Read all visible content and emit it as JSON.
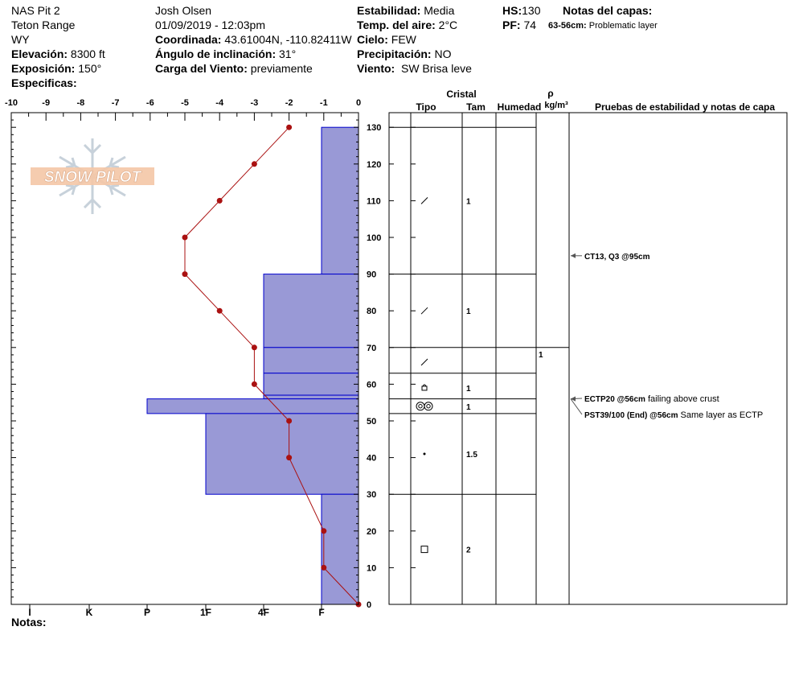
{
  "header": {
    "col1": [
      "NAS Pit 2",
      "Teton Range",
      "WY"
    ],
    "elevation_label": "Elevación:",
    "elevation_value": "8300 ft",
    "aspect_label": "Exposición:",
    "aspect_value": "150°",
    "specifics_label": "Especificas:",
    "observer": "Josh Olsen",
    "datetime": "01/09/2019 - 12:03pm",
    "coord_label": "Coordinada:",
    "coord_value": "43.61004N, -110.82411W",
    "slope_label": "Ángulo de inclinación:",
    "slope_value": "31°",
    "wind_load_label": "Carga del Viento:",
    "wind_load_value": "previamente",
    "stability_label": "Estabilidad:",
    "stability_value": "Media",
    "air_temp_label": "Temp. del aire:",
    "air_temp_value": "2°C",
    "sky_label": "Cielo:",
    "sky_value": "FEW",
    "precip_label": "Precipitación:",
    "precip_value": "NO",
    "wind_label": "Viento:",
    "wind_value": "SW Brisa leve",
    "hs_label": "HS:",
    "hs_value": "130",
    "pf_label": "PF:",
    "pf_value": "74",
    "layer_notes_label": "Notas del capas:",
    "layer_note_range": "63-56cm:",
    "layer_note_text": "Problematic layer"
  },
  "footer": {
    "notes_label": "Notas:"
  },
  "logo_text": "SNOW PILOT",
  "colors": {
    "hardness_fill": "#9999d6",
    "temp_line": "#aa1111",
    "layer_line": "#0000cc"
  },
  "table": {
    "headers": {
      "crystal": "Cristal",
      "type": "Tipo",
      "size": "Tam",
      "moisture": "Humedad",
      "rho": "ρ",
      "density_unit": "kg/m³",
      "tests": "Pruebas de estabilidad y notas de capa"
    },
    "boundaries": [
      130,
      90,
      70,
      63,
      56,
      52,
      30,
      0
    ],
    "rows": [
      {
        "depth": 110,
        "type": "precip-particle",
        "size": "1"
      },
      {
        "depth": 80,
        "type": "precip-particle",
        "size": "1"
      },
      {
        "depth": 66,
        "type": "precip-particle",
        "size": ""
      },
      {
        "depth": 59,
        "type": "faceted-rounded",
        "size": "1"
      },
      {
        "depth": 54,
        "type": "melt-freeze",
        "size": "1"
      },
      {
        "depth": 41,
        "type": "rounded-grains",
        "size": "1.5"
      },
      {
        "depth": 15,
        "type": "faceted-crystals",
        "size": "2"
      }
    ],
    "density": [
      {
        "depth": 70,
        "value": "1"
      }
    ],
    "tests": [
      {
        "depth": 95,
        "bold": "CT13, Q3 @95cm",
        "text": ""
      },
      {
        "depth": 56,
        "bold": "ECTP20 @56cm",
        "text": "failing above crust"
      },
      {
        "depth": 56,
        "bold": "PST39/100 (End) @56cm",
        "text": "Same layer as ECTP"
      }
    ]
  },
  "chart_data": {
    "type": "line",
    "x_temp_ticks": [
      -10,
      -9,
      -8,
      -7,
      -6,
      -5,
      -4,
      -3,
      -2,
      -1,
      0
    ],
    "depth_ticks": [
      0,
      10,
      20,
      30,
      40,
      50,
      60,
      70,
      80,
      90,
      100,
      110,
      120,
      130
    ],
    "hardness_ticks": [
      "I",
      "K",
      "P",
      "1F",
      "4F",
      "F"
    ],
    "ylim": [
      0,
      130
    ],
    "temperature_profile": [
      {
        "depth": 130,
        "temp": -2
      },
      {
        "depth": 120,
        "temp": -3
      },
      {
        "depth": 110,
        "temp": -4
      },
      {
        "depth": 100,
        "temp": -5
      },
      {
        "depth": 90,
        "temp": -5
      },
      {
        "depth": 80,
        "temp": -4
      },
      {
        "depth": 70,
        "temp": -3
      },
      {
        "depth": 60,
        "temp": -3
      },
      {
        "depth": 50,
        "temp": -2
      },
      {
        "depth": 40,
        "temp": -2
      },
      {
        "depth": 20,
        "temp": -1
      },
      {
        "depth": 10,
        "temp": -1
      },
      {
        "depth": 0,
        "temp": 0
      }
    ],
    "hardness_layers": [
      {
        "top": 130,
        "bottom": 90,
        "hardness": "F"
      },
      {
        "top": 90,
        "bottom": 70,
        "hardness": "4F+"
      },
      {
        "top": 70,
        "bottom": 63,
        "hardness": "4F+"
      },
      {
        "top": 63,
        "bottom": 57,
        "hardness": "4F+"
      },
      {
        "top": 57,
        "bottom": 56,
        "hardness": "4F+"
      },
      {
        "top": 56,
        "bottom": 52,
        "hardness": "P-"
      },
      {
        "top": 52,
        "bottom": 30,
        "hardness": "1F"
      },
      {
        "top": 30,
        "bottom": 0,
        "hardness": "F"
      }
    ]
  }
}
